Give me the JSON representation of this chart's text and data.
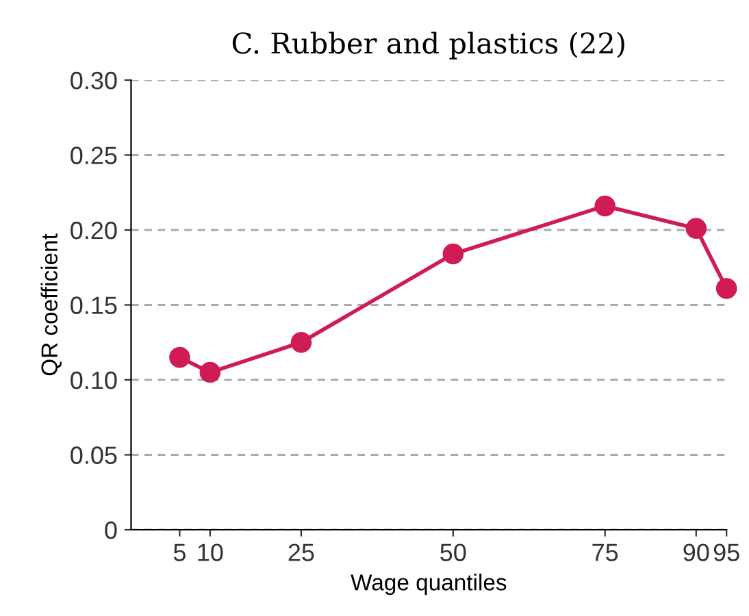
{
  "chart_data": {
    "type": "line",
    "title": "C. Rubber and plastics (22)",
    "xlabel": "Wage quantiles",
    "ylabel": "QR coefficient",
    "x": [
      5,
      10,
      25,
      50,
      75,
      90,
      95
    ],
    "series": [
      {
        "color": "#d01c54",
        "values": [
          0.115,
          0.105,
          0.125,
          0.184,
          0.216,
          0.201,
          0.161
        ]
      }
    ],
    "xlim": [
      -3,
      95
    ],
    "xticks": [
      5,
      10,
      25,
      50,
      75,
      90,
      95
    ],
    "ylim": [
      0,
      0.3
    ],
    "yticks": [
      {
        "value": 0,
        "label": "0"
      },
      {
        "value": 0.05,
        "label": "0.05"
      },
      {
        "value": 0.1,
        "label": "0.10"
      },
      {
        "value": 0.15,
        "label": "0.15"
      },
      {
        "value": 0.2,
        "label": "0.20"
      },
      {
        "value": 0.25,
        "label": "0.25"
      },
      {
        "value": 0.3,
        "label": "0.30"
      }
    ],
    "grid": "y",
    "marker": "circle",
    "line_style": "solid"
  }
}
